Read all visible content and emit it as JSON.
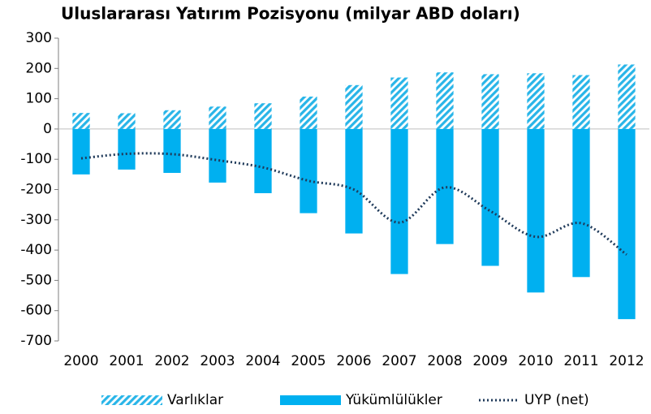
{
  "chart_data": {
    "type": "bar",
    "title": "Uluslararası Yatırım Pozisyonu (milyar ABD doları)",
    "categories": [
      "2000",
      "2001",
      "2002",
      "2003",
      "2004",
      "2005",
      "2006",
      "2007",
      "2008",
      "2009",
      "2010",
      "2011",
      "2012"
    ],
    "series": [
      {
        "name": "Varlıklar",
        "type": "bar",
        "color": "#29b5e8",
        "hatch": true,
        "values": [
          53,
          52,
          62,
          74,
          85,
          107,
          145,
          170,
          187,
          181,
          184,
          178,
          213
        ]
      },
      {
        "name": "Yükümlülükler",
        "type": "bar",
        "color": "#00b0f0",
        "values": [
          -150,
          -134,
          -145,
          -177,
          -212,
          -278,
          -345,
          -479,
          -380,
          -452,
          -540,
          -489,
          -628
        ]
      },
      {
        "name": "UYP (net)",
        "type": "line",
        "color": "#1f3a5a",
        "dotted": true,
        "values": [
          -97,
          -82,
          -83,
          -103,
          -127,
          -171,
          -200,
          -309,
          -193,
          -271,
          -356,
          -311,
          -415
        ]
      }
    ],
    "ylim": [
      -700,
      300
    ],
    "yticks": [
      -700,
      -600,
      -500,
      -400,
      -300,
      -200,
      -100,
      0,
      100,
      200,
      300
    ],
    "grid": false,
    "legend": "bottom"
  }
}
